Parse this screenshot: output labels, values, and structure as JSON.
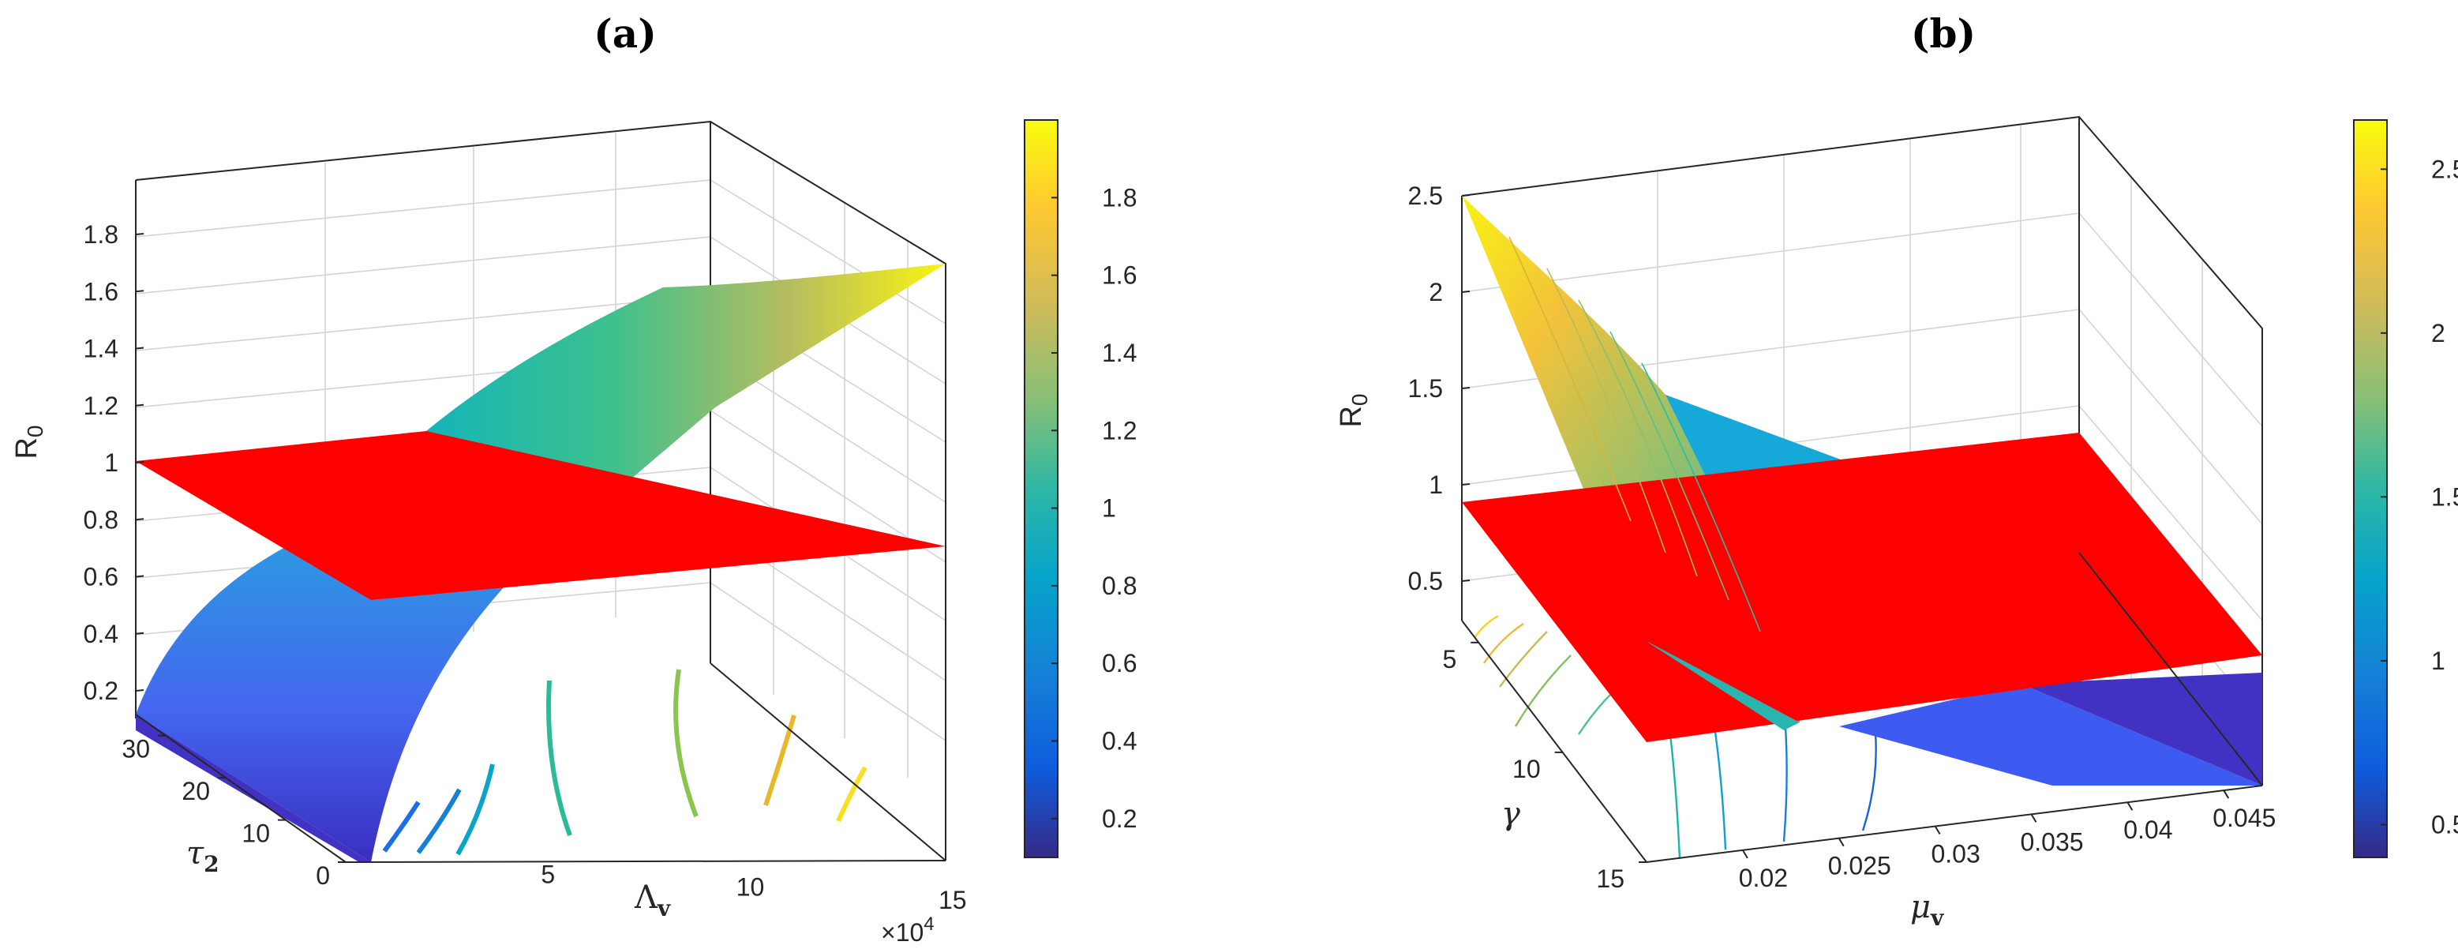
{
  "colors": {
    "plane": "#ff0000",
    "parula": [
      "#352a87",
      "#0f5cdd",
      "#1481d6",
      "#06a4ca",
      "#2eb7a4",
      "#87bf77",
      "#d1bb59",
      "#fec832",
      "#f9fb0e"
    ]
  },
  "chart_data": [
    {
      "panel": "(a)",
      "type": "surface",
      "title": "",
      "xlabel": "Λ_v",
      "ylabel": "τ_2",
      "zlabel": "R_0",
      "x_exponent_label": "×10^4",
      "x_ticks": [
        "5",
        "10",
        "15"
      ],
      "y_ticks": [
        "0",
        "10",
        "20",
        "30"
      ],
      "z_ticks": [
        "0.2",
        "0.4",
        "0.6",
        "0.8",
        "1",
        "1.2",
        "1.4",
        "1.6",
        "1.8"
      ],
      "xlim": [
        0,
        160000
      ],
      "ylim": [
        0,
        35
      ],
      "zlim": [
        0.1,
        2.0
      ],
      "plane_z": 1,
      "colorbar": {
        "range": [
          0.1,
          2.0
        ],
        "ticks": [
          "0.2",
          "0.4",
          "0.6",
          "0.8",
          "1",
          "1.2",
          "1.4",
          "1.6",
          "1.8"
        ]
      },
      "surface_samples": [
        {
          "x": 0,
          "y": 0,
          "z": 0.1
        },
        {
          "x": 40000,
          "y": 0,
          "z": 0.9
        },
        {
          "x": 80000,
          "y": 0,
          "z": 1.3
        },
        {
          "x": 160000,
          "y": 0,
          "z": 1.9
        },
        {
          "x": 0,
          "y": 35,
          "z": 0.1
        },
        {
          "x": 40000,
          "y": 35,
          "z": 0.5
        },
        {
          "x": 80000,
          "y": 35,
          "z": 0.95
        },
        {
          "x": 160000,
          "y": 35,
          "z": 1.6
        }
      ]
    },
    {
      "panel": "(b)",
      "type": "surface",
      "title": "",
      "xlabel": "μ_v",
      "ylabel": "γ",
      "zlabel": "R_0",
      "x_ticks": [
        "0.02",
        "0.025",
        "0.03",
        "0.035",
        "0.04",
        "0.045"
      ],
      "y_ticks": [
        "5",
        "10",
        "15"
      ],
      "z_ticks": [
        "0.5",
        "1",
        "1.5",
        "2",
        "2.5"
      ],
      "xlim": [
        0.015,
        0.047
      ],
      "ylim": [
        4,
        15
      ],
      "zlim": [
        0.4,
        2.6
      ],
      "plane_z": 1,
      "colorbar": {
        "range": [
          0.4,
          2.65
        ],
        "ticks": [
          "0.5",
          "1",
          "1.5",
          "2",
          "2.5"
        ]
      },
      "surface_samples": [
        {
          "x": 0.015,
          "y": 4,
          "z": 2.5
        },
        {
          "x": 0.047,
          "y": 4,
          "z": 0.4
        },
        {
          "x": 0.015,
          "y": 15,
          "z": 1.1
        },
        {
          "x": 0.047,
          "y": 15,
          "z": 0.4
        }
      ]
    }
  ]
}
